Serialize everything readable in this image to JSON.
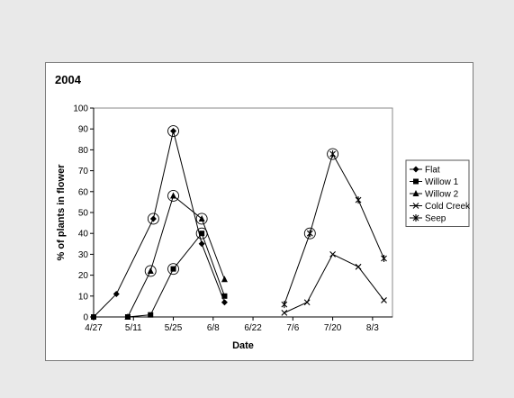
{
  "chart_data": {
    "type": "line",
    "title": "2004",
    "xlabel": "Date",
    "ylabel": "% of plants in flower",
    "ylim": [
      0,
      100
    ],
    "yticks": [
      0,
      10,
      20,
      30,
      40,
      50,
      60,
      70,
      80,
      90,
      100
    ],
    "xlim": [
      "2004-04-27",
      "2004-08-10"
    ],
    "xticks": [
      {
        "date": "2004-04-27",
        "label": "4/27"
      },
      {
        "date": "2004-05-11",
        "label": "5/11"
      },
      {
        "date": "2004-05-25",
        "label": "5/25"
      },
      {
        "date": "2004-06-08",
        "label": "6/8"
      },
      {
        "date": "2004-06-22",
        "label": "6/22"
      },
      {
        "date": "2004-07-06",
        "label": "7/6"
      },
      {
        "date": "2004-07-20",
        "label": "7/20"
      },
      {
        "date": "2004-08-03",
        "label": "8/3"
      }
    ],
    "grid": false,
    "legend_position": "right",
    "series": [
      {
        "name": "Flat",
        "marker": "diamond",
        "points": [
          [
            "2004-04-27",
            0
          ],
          [
            "2004-05-05",
            11
          ],
          [
            "2004-05-18",
            47
          ],
          [
            "2004-05-25",
            89
          ],
          [
            "2004-06-04",
            35
          ],
          [
            "2004-06-12",
            7
          ]
        ],
        "circled": [
          "2004-05-18",
          "2004-05-25"
        ]
      },
      {
        "name": "Willow 1",
        "marker": "square",
        "points": [
          [
            "2004-04-27",
            0
          ],
          [
            "2004-05-09",
            0
          ],
          [
            "2004-05-17",
            1
          ],
          [
            "2004-05-25",
            23
          ],
          [
            "2004-06-04",
            40
          ],
          [
            "2004-06-12",
            10
          ]
        ],
        "circled": [
          "2004-05-25",
          "2004-06-04"
        ]
      },
      {
        "name": "Willow 2",
        "marker": "triangle",
        "points": [
          [
            "2004-05-09",
            0
          ],
          [
            "2004-05-17",
            22
          ],
          [
            "2004-05-25",
            58
          ],
          [
            "2004-06-04",
            47
          ],
          [
            "2004-06-12",
            18
          ]
        ],
        "circled": [
          "2004-05-17",
          "2004-05-25",
          "2004-06-04"
        ]
      },
      {
        "name": "Cold Creek",
        "marker": "x",
        "points": [
          [
            "2004-07-03",
            2
          ],
          [
            "2004-07-11",
            7
          ],
          [
            "2004-07-20",
            30
          ],
          [
            "2004-07-29",
            24
          ],
          [
            "2004-08-07",
            8
          ]
        ],
        "circled": []
      },
      {
        "name": "Seep",
        "marker": "asterisk",
        "points": [
          [
            "2004-07-03",
            6
          ],
          [
            "2004-07-12",
            40
          ],
          [
            "2004-07-20",
            78
          ],
          [
            "2004-07-29",
            56
          ],
          [
            "2004-08-07",
            28
          ]
        ],
        "circled": [
          "2004-07-12",
          "2004-07-20"
        ]
      }
    ]
  }
}
